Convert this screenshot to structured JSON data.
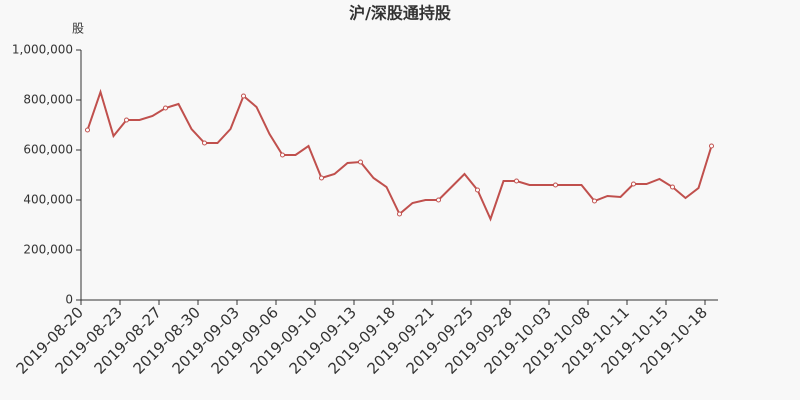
{
  "chart_data": {
    "type": "line",
    "title": "沪/深股通持股",
    "y_label": "股",
    "categories": [
      "2019-08-20",
      null,
      null,
      "2019-08-23",
      null,
      null,
      "2019-08-27",
      null,
      null,
      "2019-08-30",
      null,
      null,
      "2019-09-03",
      null,
      null,
      "2019-09-06",
      null,
      null,
      "2019-09-10",
      null,
      null,
      "2019-09-13",
      null,
      null,
      "2019-09-18",
      null,
      null,
      "2019-09-21",
      null,
      null,
      "2019-09-25",
      null,
      null,
      "2019-09-28",
      null,
      null,
      "2019-10-03",
      null,
      null,
      "2019-10-08",
      null,
      null,
      "2019-10-11",
      null,
      null,
      "2019-10-15",
      null,
      null,
      "2019-10-18"
    ],
    "series": [
      {
        "name": "沪/深股通持股",
        "color": "#c0504d",
        "values": [
          680000,
          832000,
          656000,
          720000,
          720000,
          736000,
          768000,
          784000,
          684000,
          628000,
          628000,
          684000,
          816000,
          772000,
          664000,
          580000,
          580000,
          616000,
          488000,
          504000,
          548000,
          552000,
          488000,
          452000,
          344000,
          388000,
          400000,
          400000,
          452000,
          504000,
          440000,
          324000,
          476000,
          476000,
          460000,
          460000,
          460000,
          460000,
          460000,
          396000,
          416000,
          412000,
          464000,
          464000,
          484000,
          452000,
          408000,
          448000,
          616000
        ]
      }
    ],
    "ylim": [
      0,
      1000000
    ],
    "yticks": [
      0,
      {
        "value": 200000,
        "label": "200,000"
      },
      {
        "value": 400000,
        "label": "400,000"
      },
      {
        "value": 600000,
        "label": "600,000"
      },
      {
        "value": 800000,
        "label": "800,000"
      },
      {
        "value": 1000000,
        "label": "1,000,000"
      }
    ],
    "grid": false
  }
}
